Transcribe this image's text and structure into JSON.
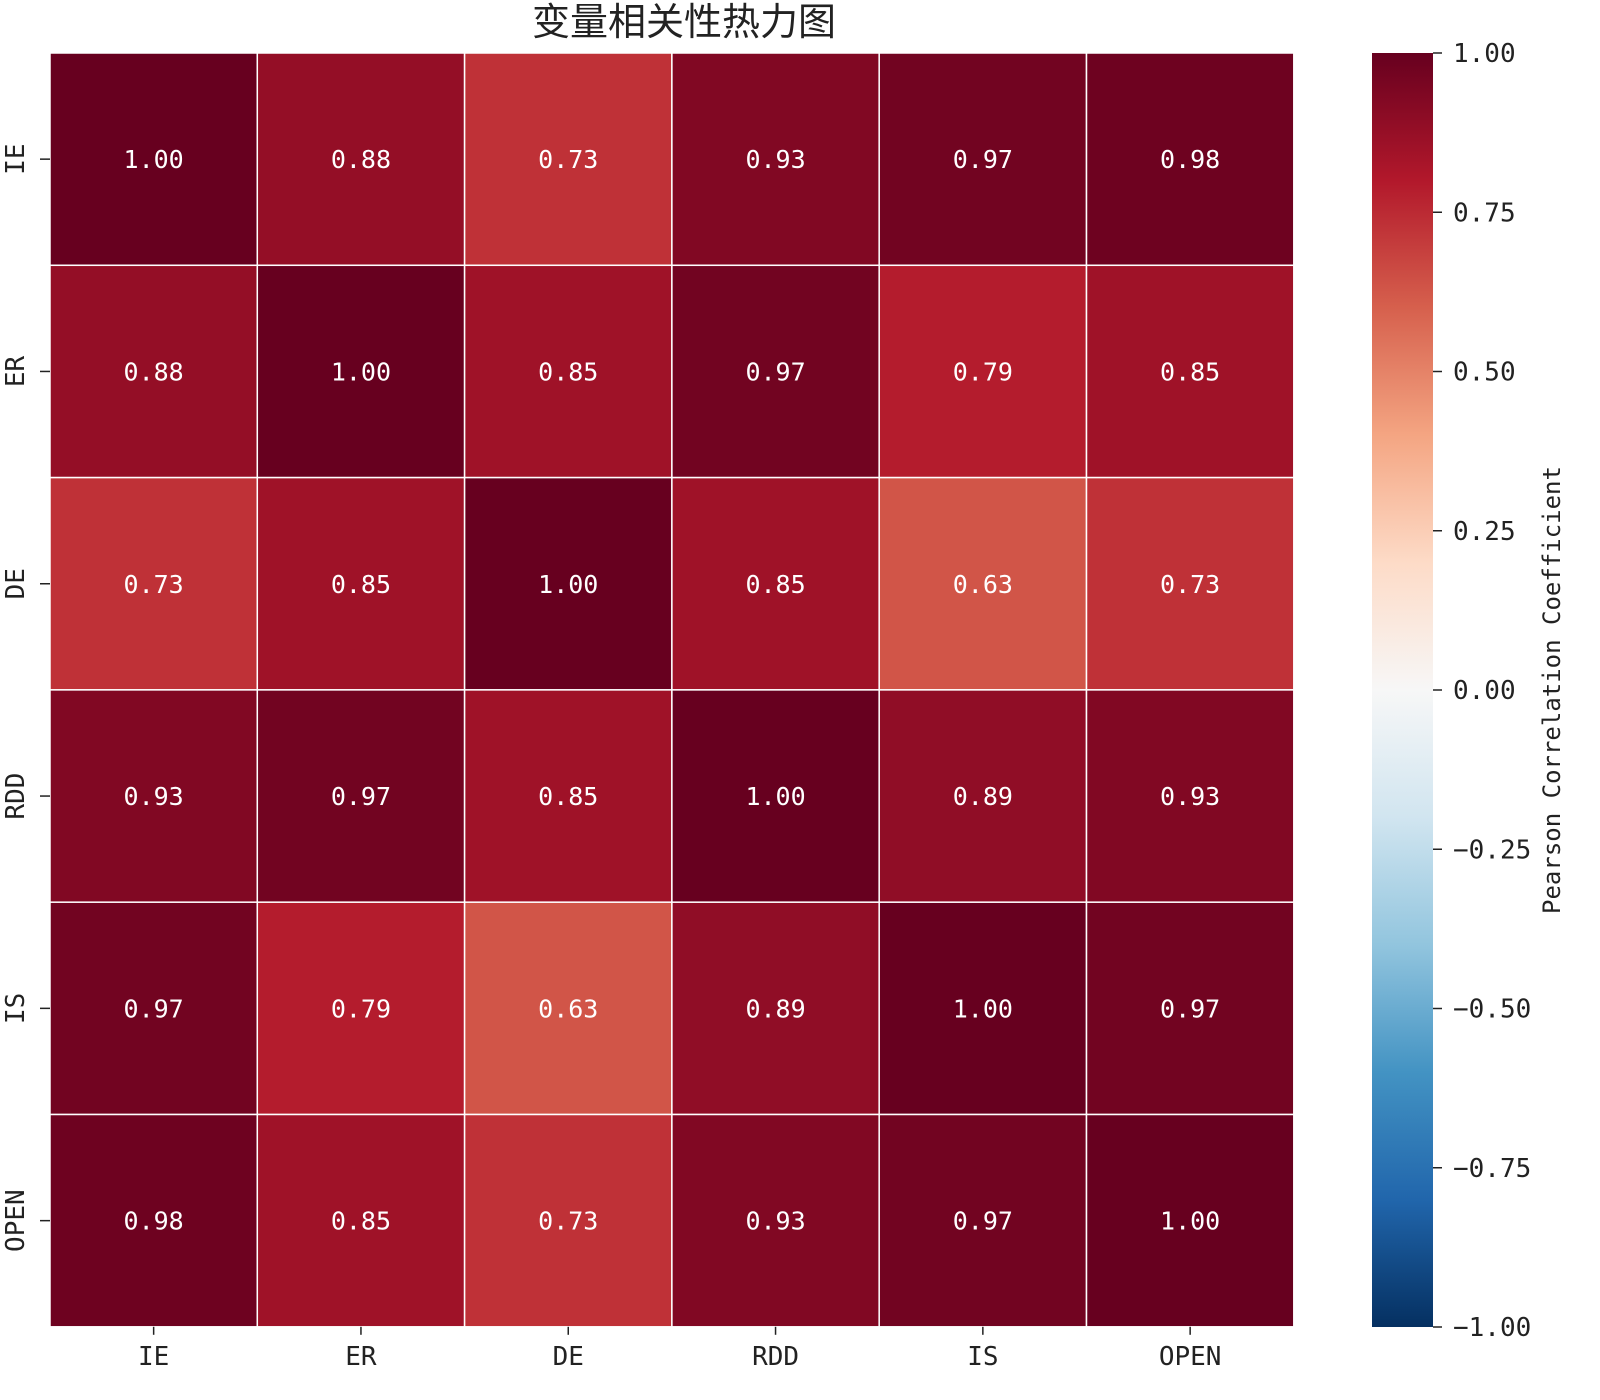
{
  "chart_data": {
    "type": "heatmap",
    "title": "变量相关性热力图",
    "x_labels": [
      "IE",
      "ER",
      "DE",
      "RDD",
      "IS",
      "OPEN"
    ],
    "y_labels": [
      "IE",
      "ER",
      "DE",
      "RDD",
      "IS",
      "OPEN"
    ],
    "values": [
      [
        1.0,
        0.88,
        0.73,
        0.93,
        0.97,
        0.98
      ],
      [
        0.88,
        1.0,
        0.85,
        0.97,
        0.79,
        0.85
      ],
      [
        0.73,
        0.85,
        1.0,
        0.85,
        0.63,
        0.73
      ],
      [
        0.93,
        0.97,
        0.85,
        1.0,
        0.89,
        0.93
      ],
      [
        0.97,
        0.79,
        0.63,
        0.89,
        1.0,
        0.97
      ],
      [
        0.98,
        0.85,
        0.73,
        0.93,
        0.97,
        1.0
      ]
    ],
    "value_format": "0.00",
    "colormap": "RdBu_r",
    "colorbar": {
      "label": "Pearson Correlation Coefficient",
      "range": [
        -1.0,
        1.0
      ],
      "ticks": [
        "1.00",
        "0.75",
        "0.50",
        "0.25",
        "0.00",
        "−0.25",
        "−0.50",
        "−0.75",
        "−1.00"
      ],
      "tick_values": [
        1.0,
        0.75,
        0.5,
        0.25,
        0.0,
        -0.25,
        -0.5,
        -0.75,
        -1.0
      ]
    },
    "colors": [
      "#053061",
      "#2166ac",
      "#4393c3",
      "#92c5de",
      "#d1e5f0",
      "#f7f7f7",
      "#fddbc7",
      "#f4a582",
      "#d6604d",
      "#b2182b",
      "#67001f"
    ],
    "cell_border_color": "#ffffff"
  }
}
